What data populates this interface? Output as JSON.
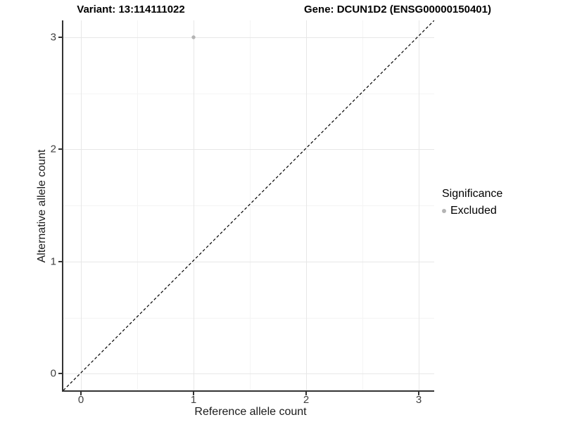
{
  "titles": {
    "variant": "Variant: 13:114111022",
    "gene": "Gene: DCUN1D2 (ENSG00000150401)"
  },
  "axes": {
    "x": {
      "label": "Reference allele count",
      "ticks": [
        "0",
        "1",
        "2",
        "3"
      ]
    },
    "y": {
      "label": "Alternative allele count",
      "ticks": [
        "0",
        "1",
        "2",
        "3"
      ]
    }
  },
  "legend": {
    "title": "Significance",
    "items": [
      {
        "label": "Excluded",
        "color": "#b4b4b4"
      }
    ]
  },
  "colors": {
    "point": "#b4b4b4",
    "grid_major": "#e7e7e7",
    "grid_minor": "#f4f4f4",
    "axis": "#333333",
    "reference_line": "#000000"
  },
  "chart_data": {
    "type": "scatter",
    "title_left": "Variant: 13:114111022",
    "title_right": "Gene: DCUN1D2 (ENSG00000150401)",
    "xlabel": "Reference allele count",
    "ylabel": "Alternative allele count",
    "xlim": [
      -0.15,
      3.15
    ],
    "ylim": [
      -0.15,
      3.15
    ],
    "x_ticks": [
      0,
      1,
      2,
      3
    ],
    "y_ticks": [
      0,
      1,
      2,
      3
    ],
    "grid": "major and minor (0.5 steps), light gray on white",
    "legend_position": "right",
    "series": [
      {
        "name": "Excluded",
        "color": "#b4b4b4",
        "points": [
          {
            "x": 1,
            "y": 3
          }
        ]
      }
    ],
    "reference_line": {
      "equation": "y = x",
      "style": "dashed",
      "color": "#000000"
    }
  }
}
